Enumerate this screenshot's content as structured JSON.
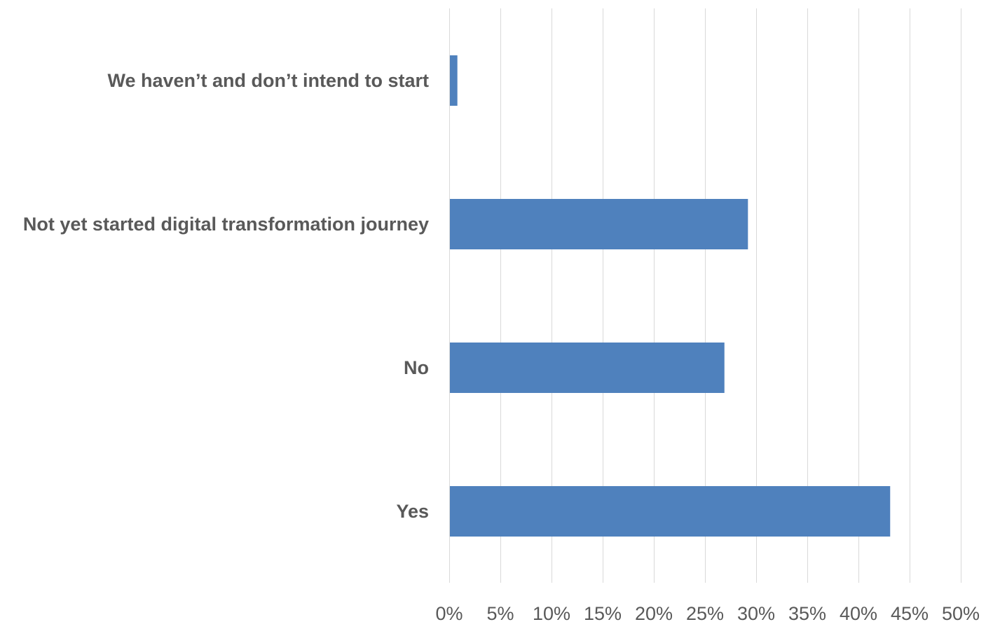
{
  "chart_data": {
    "type": "bar",
    "orientation": "horizontal",
    "categories": [
      "We haven’t and don’t intend to start",
      "Not yet started digital transformation journey",
      "No",
      "Yes"
    ],
    "values": [
      0.8,
      29.2,
      26.9,
      43.1
    ],
    "unit": "%",
    "title": "",
    "xlabel": "",
    "ylabel": "",
    "xlim": [
      0,
      50
    ],
    "x_ticks": [
      0,
      5,
      10,
      15,
      20,
      25,
      30,
      35,
      40,
      45,
      50
    ],
    "x_tick_labels": [
      "0%",
      "5%",
      "10%",
      "15%",
      "20%",
      "25%",
      "30%",
      "35%",
      "40%",
      "45%",
      "50%"
    ],
    "grid": "vertical",
    "legend": "none",
    "bar_color": "#4f81bd"
  }
}
